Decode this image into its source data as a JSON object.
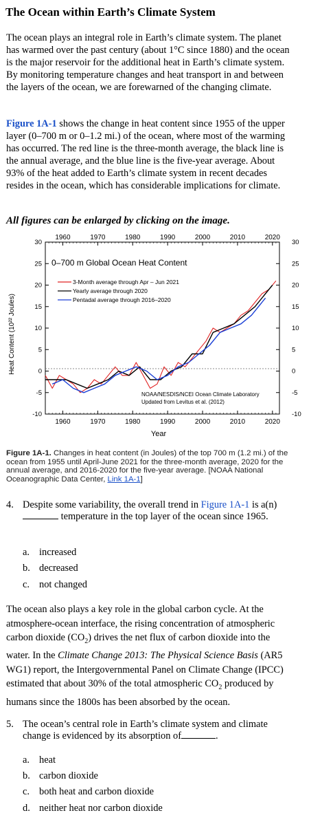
{
  "title": "The Ocean within Earth’s Climate System",
  "intro": "The ocean plays an integral role in Earth’s climate system. The planet has warmed over the past century (about 1°C since 1880) and the ocean is the major reservoir for the additional heat in Earth’s climate system. By monitoring temperature changes and heat transport in and between the layers of the ocean, we are forewarned of the changing climate.",
  "fig_para": {
    "link": "Figure 1A-1",
    "text": " shows the change in heat content since 1955 of the upper layer (0–700 m or 0–1.2 mi.) of the ocean, where most of the warming has occurred. The red line is the three-month average, the black line is the annual average, and the blue line is the five-year average. About 93% of the heat added to Earth’s climate system in recent decades resides in the ocean, which has considerable implications for climate."
  },
  "enlarge_note": "All figures can be enlarged by clicking on the image.",
  "chart_data": {
    "type": "line",
    "title": "0–700 m Global Ocean Heat Content",
    "xlabel": "Year",
    "ylabel": "Heat Content (10²² Joules)",
    "xlim": [
      1955,
      2022
    ],
    "ylim": [
      -10,
      30
    ],
    "x_ticks": [
      "1960",
      "1970",
      "1980",
      "1990",
      "2000",
      "2010",
      "2020"
    ],
    "y_ticks": [
      "-10",
      "-5",
      "0",
      "5",
      "10",
      "15",
      "20",
      "25",
      "30"
    ],
    "legend": [
      "3-Month average through Apr – Jun 2021",
      "Yearly average through 2020",
      "Pentadal average through 2016–2020"
    ],
    "source_note": [
      "NOAA/NESDIS/NCEI Ocean Climate Laboratory",
      "Updated from Levitus et al. (2012)"
    ],
    "series": [
      {
        "name": "3-Month average through Apr – Jun 2021",
        "color": "#e02020",
        "x": [
          1955,
          1957,
          1959,
          1961,
          1963,
          1965,
          1967,
          1969,
          1971,
          1973,
          1975,
          1977,
          1979,
          1981,
          1983,
          1985,
          1987,
          1989,
          1991,
          1993,
          1995,
          1997,
          1999,
          2001,
          2003,
          2005,
          2007,
          2009,
          2011,
          2013,
          2015,
          2017,
          2019,
          2021
        ],
        "y": [
          -1,
          -4,
          -1,
          -2,
          -3,
          -5,
          -4,
          -2,
          -3,
          -1,
          1,
          -1,
          -1,
          2,
          -1,
          -4,
          -3,
          1,
          -1,
          2,
          1,
          3,
          5,
          7,
          10,
          9,
          10,
          11,
          13,
          14,
          16,
          18,
          19,
          21
        ]
      },
      {
        "name": "Yearly average through 2020",
        "color": "#000000",
        "x": [
          1955,
          1958,
          1961,
          1964,
          1967,
          1970,
          1973,
          1976,
          1979,
          1982,
          1985,
          1988,
          1991,
          1994,
          1997,
          2000,
          2003,
          2006,
          2009,
          2012,
          2015,
          2018,
          2020
        ],
        "y": [
          -2,
          -2,
          -2,
          -3,
          -4,
          -3,
          -2,
          0,
          -1,
          1,
          -2,
          -2,
          0,
          1,
          4,
          4,
          9,
          10,
          11,
          13,
          15,
          18,
          20
        ]
      },
      {
        "name": "Pentadal average through 2016–2020",
        "color": "#1a3fd6",
        "x": [
          1957,
          1960,
          1963,
          1966,
          1969,
          1972,
          1975,
          1978,
          1981,
          1984,
          1987,
          1990,
          1993,
          1996,
          1999,
          2002,
          2005,
          2008,
          2011,
          2014,
          2018
        ],
        "y": [
          -3,
          -2,
          -4,
          -5,
          -4,
          -3,
          -1,
          0,
          1,
          0,
          -2,
          -1,
          1,
          2,
          4,
          6,
          9,
          10,
          11,
          13,
          17
        ]
      }
    ]
  },
  "caption": {
    "label": "Figure 1A-1.",
    "text": " Changes in heat content (in Joules) of the top 700 m (1.2 mi.) of the ocean from 1955 until April-June 2021 for the three-month average, 2020 for the annual average, and 2016-2020 for the five-year average. [NOAA National Oceanographic Data Center, ",
    "link": "Link 1A-1",
    "end": "]"
  },
  "q4": {
    "num": "4.",
    "pre": "Despite some variability, the overall trend in ",
    "link": "Figure 1A-1",
    "mid": " is a(n)",
    "post": " temperature in the top layer of the ocean since 1965.",
    "options": [
      {
        "letter": "a.",
        "text": "increased"
      },
      {
        "letter": "b.",
        "text": "decreased"
      },
      {
        "letter": "c.",
        "text": "not changed"
      }
    ]
  },
  "carbon_para": {
    "a": "The ocean also plays a key role in the global carbon cycle. At the atmosphere-ocean interface, the rising concentration of atmospheric carbon dioxide (CO",
    "a_sub": "2",
    "b": ") drives the net flux of carbon dioxide into the water. In the ",
    "book": "Climate Change 2013: The Physical Science Basis",
    "c": " (AR5 WG1) report, the Intergovernmental Panel on Climate Change (IPCC) estimated that about 30% of the total atmospheric CO",
    "c_sub": "2",
    "d": " produced by humans since the 1800s has been absorbed by the ocean."
  },
  "q5": {
    "num": "5.",
    "text": "The ocean’s central role in Earth’s climate system and climate change is evidenced by its absorption of",
    "end": ".",
    "options": [
      {
        "letter": "a.",
        "text": "heat"
      },
      {
        "letter": "b.",
        "text": "carbon dioxide"
      },
      {
        "letter": "c.",
        "text": "both heat and carbon dioxide"
      },
      {
        "letter": "d.",
        "text": "neither heat nor carbon dioxide"
      }
    ]
  }
}
